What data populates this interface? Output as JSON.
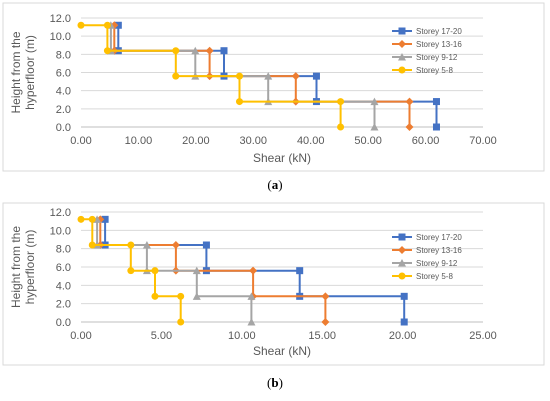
{
  "chart_data": [
    {
      "type": "line",
      "step": true,
      "xlabel": "Shear (kN)",
      "ylabel": "Height from the hyperfloor (m)",
      "xlim": [
        0,
        70
      ],
      "ylim": [
        0,
        12
      ],
      "xticks": [
        "0.00",
        "10.00",
        "20.00",
        "30.00",
        "40.00",
        "50.00",
        "60.00",
        "70.00"
      ],
      "yticks": [
        "0.0",
        "2.0",
        "4.0",
        "6.0",
        "8.0",
        "10.0",
        "12.0"
      ],
      "caption_open": "(",
      "caption_letter": "a",
      "caption_close": ")",
      "legend_position": "right",
      "series": [
        {
          "name": "Storey 17-20",
          "color": "#4472c4",
          "marker": "square",
          "x": [
            6.5,
            6.5,
            24.9,
            24.9,
            41.0,
            41.0,
            61.9,
            61.9
          ],
          "y": [
            11.2,
            8.4,
            8.4,
            5.6,
            5.6,
            2.8,
            2.8,
            0.0
          ]
        },
        {
          "name": "Storey 13-16",
          "color": "#ed7d31",
          "marker": "diamond",
          "x": [
            5.8,
            5.8,
            22.4,
            22.4,
            37.4,
            37.4,
            57.2,
            57.2
          ],
          "y": [
            11.2,
            8.4,
            8.4,
            5.6,
            5.6,
            2.8,
            2.8,
            0.0
          ]
        },
        {
          "name": "Storey 9-12",
          "color": "#a5a5a5",
          "marker": "triangle",
          "x": [
            5.2,
            5.2,
            19.9,
            19.9,
            32.6,
            32.6,
            51.1,
            51.1
          ],
          "y": [
            11.2,
            8.4,
            8.4,
            5.6,
            5.6,
            2.8,
            2.8,
            0.0
          ]
        },
        {
          "name": "Storey 5-8",
          "color": "#ffc000",
          "marker": "circle",
          "x": [
            0.0,
            4.6,
            4.6,
            16.5,
            16.5,
            27.6,
            27.6,
            45.2,
            45.2
          ],
          "y": [
            11.2,
            11.2,
            8.4,
            8.4,
            5.6,
            5.6,
            2.8,
            2.8,
            0.0
          ]
        }
      ]
    },
    {
      "type": "line",
      "step": true,
      "xlabel": "Shear (kN)",
      "ylabel": "Height from the hyperfloor (m)",
      "xlim": [
        0,
        25
      ],
      "ylim": [
        0,
        12
      ],
      "xticks": [
        "0.00",
        "5.00",
        "10.00",
        "15.00",
        "20.00",
        "25.00"
      ],
      "yticks": [
        "0.0",
        "2.0",
        "4.0",
        "6.0",
        "8.0",
        "10.0",
        "12.0"
      ],
      "caption_open": "(",
      "caption_letter": "b",
      "caption_close": ")",
      "legend_position": "right",
      "series": [
        {
          "name": "Storey 17-20",
          "color": "#4472c4",
          "marker": "square",
          "x": [
            1.5,
            1.5,
            7.8,
            7.8,
            13.6,
            13.6,
            20.1,
            20.1
          ],
          "y": [
            11.2,
            8.4,
            8.4,
            5.6,
            5.6,
            2.8,
            2.8,
            0.0
          ]
        },
        {
          "name": "Storey 13-16",
          "color": "#ed7d31",
          "marker": "diamond",
          "x": [
            1.2,
            1.2,
            5.9,
            5.9,
            10.7,
            10.7,
            15.2,
            15.2
          ],
          "y": [
            11.2,
            8.4,
            8.4,
            5.6,
            5.6,
            2.8,
            2.8,
            0.0
          ]
        },
        {
          "name": "Storey 9-12",
          "color": "#a5a5a5",
          "marker": "triangle",
          "x": [
            1.0,
            1.0,
            4.1,
            4.1,
            7.2,
            7.2,
            10.6,
            10.6
          ],
          "y": [
            11.2,
            8.4,
            8.4,
            5.6,
            5.6,
            2.8,
            2.8,
            0.0
          ]
        },
        {
          "name": "Storey 5-8",
          "color": "#ffc000",
          "marker": "circle",
          "x": [
            0.0,
            0.7,
            0.7,
            3.1,
            3.1,
            4.6,
            4.6,
            6.2,
            6.2
          ],
          "y": [
            11.2,
            11.2,
            8.4,
            8.4,
            5.6,
            5.6,
            2.8,
            2.8,
            0.0
          ]
        }
      ]
    }
  ]
}
